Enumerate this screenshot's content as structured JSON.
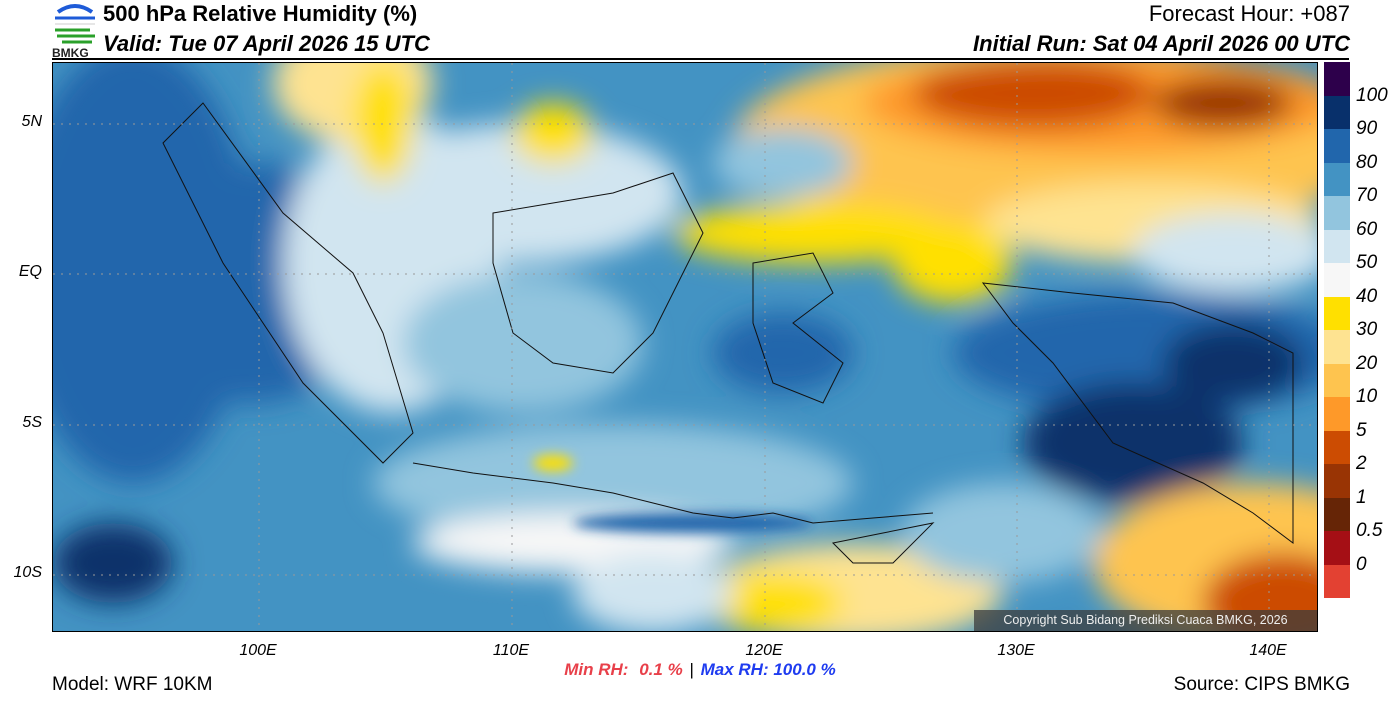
{
  "header": {
    "logo_text": "BMKG",
    "title": "500 hPa Relative Humidity (%)",
    "valid": "Valid: Tue 07 April 2026 15 UTC",
    "forecast_hour": "Forecast Hour: +087",
    "initial_run": "Initial Run: Sat 04 April 2026 00 UTC"
  },
  "axes": {
    "lat_labels": [
      "5N",
      "EQ",
      "5S",
      "10S"
    ],
    "lon_labels": [
      "100E",
      "110E",
      "120E",
      "130E",
      "140E"
    ]
  },
  "colorbar": {
    "colors": [
      "#2d004b",
      "#08306b",
      "#2166ac",
      "#4393c3",
      "#92c5de",
      "#d1e5f0",
      "#f7f7f7",
      "#ffe000",
      "#fee391",
      "#fec44f",
      "#fe9929",
      "#cc4c02",
      "#993404",
      "#662506",
      "#a50f15",
      "#e34132"
    ],
    "labels": [
      "100",
      "90",
      "80",
      "70",
      "60",
      "50",
      "40",
      "30",
      "20",
      "10",
      "5",
      "2",
      "1",
      "0.5",
      "0"
    ]
  },
  "stats": {
    "min_label": "Min RH:",
    "min_value": "0.1 %",
    "separator": "|",
    "max_label": "Max RH:",
    "max_value": "100.0 %",
    "min_color": "#e8404a",
    "max_color": "#1f3cf0"
  },
  "footer": {
    "model": "Model: WRF 10KM",
    "source": "Source: CIPS BMKG",
    "copyright": "Copyright Sub Bidang Prediksi Cuaca BMKG, 2026"
  }
}
